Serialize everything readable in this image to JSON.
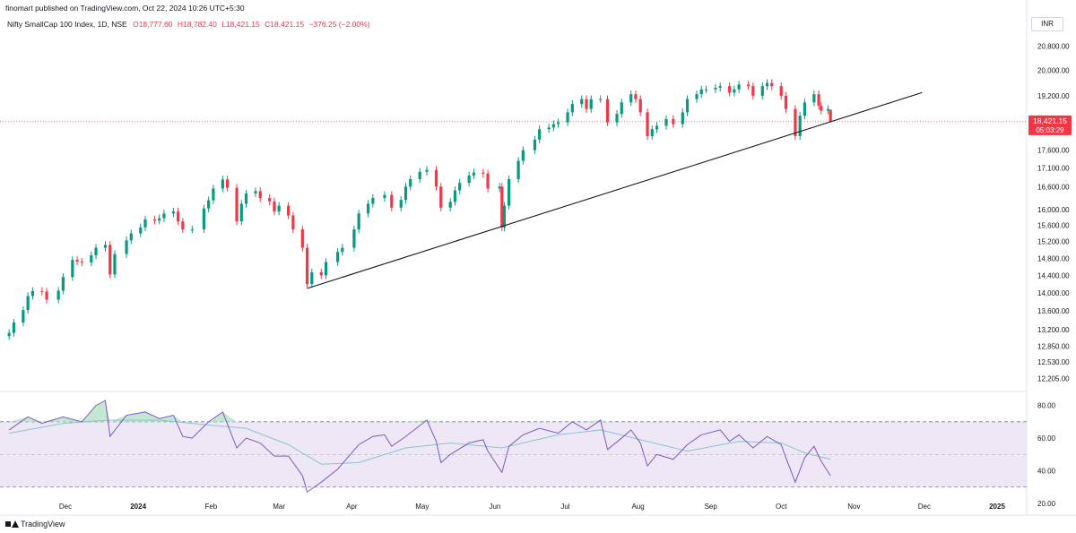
{
  "header": {
    "published_by": "finomart published on TradingView.com, Oct 22, 2024 10:26 UTC+5:30"
  },
  "legend": {
    "symbol": "Nifty SmallCap 100 Index, 1D, NSE",
    "open": "O18,777.60",
    "high": "H18,782.40",
    "low": "L18,421.15",
    "close": "C18,421.15",
    "change": "−376.25 (−2.00%)"
  },
  "currency": "INR",
  "last_price": {
    "value": "18,421.15",
    "countdown": "05:03:29",
    "level": 18421.15
  },
  "footer": {
    "logo_text": "TradingView"
  },
  "colors": {
    "up": "#089981",
    "down": "#f23645",
    "rsi": "#7e57c2",
    "rsi_ma": "#89c4d0",
    "rsi_band": "#ede7f6",
    "trendline": "#131722"
  },
  "chart_data": [
    {
      "type": "candlestick",
      "scale": "log",
      "ylim": [
        12040,
        21200
      ],
      "y_ticks": [
        {
          "value": 12205,
          "label": "12,205.00"
        },
        {
          "value": 12530,
          "label": "12,530.00"
        },
        {
          "value": 12850,
          "label": "12,850.00"
        },
        {
          "value": 13200,
          "label": "13,200.00"
        },
        {
          "value": 13600,
          "label": "13,600.00"
        },
        {
          "value": 14000,
          "label": "14,000.00"
        },
        {
          "value": 14400,
          "label": "14,400.00"
        },
        {
          "value": 14800,
          "label": "14,800.00"
        },
        {
          "value": 15200,
          "label": "15,200.00"
        },
        {
          "value": 15600,
          "label": "15,600.00"
        },
        {
          "value": 16000,
          "label": "16,000.00"
        },
        {
          "value": 16600,
          "label": "16,600.00"
        },
        {
          "value": 17100,
          "label": "17,100.00"
        },
        {
          "value": 17600,
          "label": "17,600.00"
        },
        {
          "value": 19200,
          "label": "19,200.00"
        },
        {
          "value": 20000,
          "label": "20,000.00"
        },
        {
          "value": 20800,
          "label": "20,800.00"
        }
      ],
      "x_labels": [
        "Dec",
        "2024",
        "Feb",
        "Mar",
        "Apr",
        "May",
        "Jun",
        "Jul",
        "Aug",
        "Sep",
        "Oct",
        "Nov",
        "Dec",
        "2025"
      ],
      "x_label_dates": [
        "2023-12-01",
        "2024-01-01",
        "2024-02-01",
        "2024-03-01",
        "2024-04-01",
        "2024-05-01",
        "2024-06-01",
        "2024-07-01",
        "2024-08-01",
        "2024-09-01",
        "2024-10-01",
        "2024-11-01",
        "2024-12-01",
        "2025-01-01"
      ],
      "trendline": [
        {
          "date": "2024-03-13",
          "value": 14100
        },
        {
          "date": "2024-11-30",
          "value": 19300
        }
      ],
      "series": [
        {
          "date": "2023-11-07",
          "close": 13130
        },
        {
          "date": "2023-11-09",
          "close": 13350
        },
        {
          "date": "2023-11-13",
          "close": 13620
        },
        {
          "date": "2023-11-15",
          "close": 13930
        },
        {
          "date": "2023-11-17",
          "close": 14040
        },
        {
          "date": "2023-11-21",
          "close": 14030
        },
        {
          "date": "2023-11-23",
          "close": 13850
        },
        {
          "date": "2023-11-28",
          "close": 14050
        },
        {
          "date": "2023-11-30",
          "close": 14360
        },
        {
          "date": "2023-12-04",
          "close": 14760
        },
        {
          "date": "2023-12-06",
          "close": 14720
        },
        {
          "date": "2023-12-08",
          "close": 14700
        },
        {
          "date": "2023-12-12",
          "close": 14870
        },
        {
          "date": "2023-12-14",
          "close": 15050
        },
        {
          "date": "2023-12-18",
          "close": 15120
        },
        {
          "date": "2023-12-20",
          "close": 14420
        },
        {
          "date": "2023-12-22",
          "close": 14900
        },
        {
          "date": "2023-12-27",
          "close": 15230
        },
        {
          "date": "2023-12-29",
          "close": 15400
        },
        {
          "date": "2024-01-02",
          "close": 15550
        },
        {
          "date": "2024-01-04",
          "close": 15750
        },
        {
          "date": "2024-01-08",
          "close": 15720
        },
        {
          "date": "2024-01-10",
          "close": 15780
        },
        {
          "date": "2024-01-12",
          "close": 15900
        },
        {
          "date": "2024-01-16",
          "close": 15950
        },
        {
          "date": "2024-01-18",
          "close": 15700
        },
        {
          "date": "2024-01-20",
          "close": 15500
        },
        {
          "date": "2024-01-24",
          "close": 15500
        },
        {
          "date": "2024-01-29",
          "close": 16030
        },
        {
          "date": "2024-01-31",
          "close": 16240
        },
        {
          "date": "2024-02-02",
          "close": 16550
        },
        {
          "date": "2024-02-06",
          "close": 16790
        },
        {
          "date": "2024-02-08",
          "close": 16570
        },
        {
          "date": "2024-02-12",
          "close": 15700
        },
        {
          "date": "2024-02-14",
          "close": 16150
        },
        {
          "date": "2024-02-16",
          "close": 16420
        },
        {
          "date": "2024-02-20",
          "close": 16480
        },
        {
          "date": "2024-02-22",
          "close": 16300
        },
        {
          "date": "2024-02-26",
          "close": 16210
        },
        {
          "date": "2024-02-28",
          "close": 15950
        },
        {
          "date": "2024-03-01",
          "close": 16100
        },
        {
          "date": "2024-03-05",
          "close": 15850
        },
        {
          "date": "2024-03-07",
          "close": 15500
        },
        {
          "date": "2024-03-11",
          "close": 15050
        },
        {
          "date": "2024-03-13",
          "close": 14200
        },
        {
          "date": "2024-03-15",
          "close": 14470
        },
        {
          "date": "2024-03-19",
          "close": 14400
        },
        {
          "date": "2024-03-21",
          "close": 14710
        },
        {
          "date": "2024-03-26",
          "close": 14950
        },
        {
          "date": "2024-03-28",
          "close": 15050
        },
        {
          "date": "2024-04-02",
          "close": 15500
        },
        {
          "date": "2024-04-04",
          "close": 15900
        },
        {
          "date": "2024-04-08",
          "close": 16150
        },
        {
          "date": "2024-04-10",
          "close": 16300
        },
        {
          "date": "2024-04-15",
          "close": 16380
        },
        {
          "date": "2024-04-18",
          "close": 16050
        },
        {
          "date": "2024-04-22",
          "close": 16250
        },
        {
          "date": "2024-04-24",
          "close": 16600
        },
        {
          "date": "2024-04-26",
          "close": 16800
        },
        {
          "date": "2024-04-30",
          "close": 17000
        },
        {
          "date": "2024-05-03",
          "close": 17050
        },
        {
          "date": "2024-05-07",
          "close": 16600
        },
        {
          "date": "2024-05-09",
          "close": 16050
        },
        {
          "date": "2024-05-13",
          "close": 16200
        },
        {
          "date": "2024-05-15",
          "close": 16500
        },
        {
          "date": "2024-05-17",
          "close": 16700
        },
        {
          "date": "2024-05-21",
          "close": 16900
        },
        {
          "date": "2024-05-23",
          "close": 16980
        },
        {
          "date": "2024-05-27",
          "close": 16950
        },
        {
          "date": "2024-05-29",
          "close": 16550
        },
        {
          "date": "2024-06-03",
          "close": 16600
        },
        {
          "date": "2024-06-04",
          "close": 15550
        },
        {
          "date": "2024-06-05",
          "close": 16100
        },
        {
          "date": "2024-06-07",
          "close": 16800
        },
        {
          "date": "2024-06-11",
          "close": 17300
        },
        {
          "date": "2024-06-13",
          "close": 17600
        },
        {
          "date": "2024-06-18",
          "close": 17900
        },
        {
          "date": "2024-06-20",
          "close": 18200
        },
        {
          "date": "2024-06-24",
          "close": 18250
        },
        {
          "date": "2024-06-26",
          "close": 18350
        },
        {
          "date": "2024-06-28",
          "close": 18400
        },
        {
          "date": "2024-07-02",
          "close": 18700
        },
        {
          "date": "2024-07-04",
          "close": 18950
        },
        {
          "date": "2024-07-08",
          "close": 19100
        },
        {
          "date": "2024-07-10",
          "close": 18800
        },
        {
          "date": "2024-07-12",
          "close": 19100
        },
        {
          "date": "2024-07-16",
          "close": 19100
        },
        {
          "date": "2024-07-19",
          "close": 18400
        },
        {
          "date": "2024-07-23",
          "close": 18650
        },
        {
          "date": "2024-07-25",
          "close": 19000
        },
        {
          "date": "2024-07-29",
          "close": 19250
        },
        {
          "date": "2024-07-31",
          "close": 19100
        },
        {
          "date": "2024-08-02",
          "close": 18700
        },
        {
          "date": "2024-08-05",
          "close": 18000
        },
        {
          "date": "2024-08-07",
          "close": 18200
        },
        {
          "date": "2024-08-09",
          "close": 18300
        },
        {
          "date": "2024-08-13",
          "close": 18500
        },
        {
          "date": "2024-08-16",
          "close": 18350
        },
        {
          "date": "2024-08-20",
          "close": 18700
        },
        {
          "date": "2024-08-22",
          "close": 19100
        },
        {
          "date": "2024-08-26",
          "close": 19250
        },
        {
          "date": "2024-08-28",
          "close": 19400
        },
        {
          "date": "2024-08-30",
          "close": 19400
        },
        {
          "date": "2024-09-03",
          "close": 19450
        },
        {
          "date": "2024-09-05",
          "close": 19500
        },
        {
          "date": "2024-09-09",
          "close": 19300
        },
        {
          "date": "2024-09-11",
          "close": 19400
        },
        {
          "date": "2024-09-13",
          "close": 19550
        },
        {
          "date": "2024-09-17",
          "close": 19500
        },
        {
          "date": "2024-09-19",
          "close": 19200
        },
        {
          "date": "2024-09-23",
          "close": 19500
        },
        {
          "date": "2024-09-25",
          "close": 19600
        },
        {
          "date": "2024-09-27",
          "close": 19500
        },
        {
          "date": "2024-10-01",
          "close": 19200
        },
        {
          "date": "2024-10-03",
          "close": 18800
        },
        {
          "date": "2024-10-07",
          "close": 18000
        },
        {
          "date": "2024-10-09",
          "close": 18600
        },
        {
          "date": "2024-10-11",
          "close": 19000
        },
        {
          "date": "2024-10-15",
          "close": 19250
        },
        {
          "date": "2024-10-17",
          "close": 18900
        },
        {
          "date": "2024-10-18",
          "close": 18750
        },
        {
          "date": "2024-10-21",
          "close": 18797.4
        },
        {
          "date": "2024-10-22",
          "open": 18777.6,
          "high": 18782.4,
          "low": 18421.15,
          "close": 18421.15
        }
      ]
    },
    {
      "type": "line",
      "name": "RSI",
      "ylim": [
        20,
        88
      ],
      "y_ticks": [
        {
          "value": 20,
          "label": "20.00"
        },
        {
          "value": 40,
          "label": "40.00"
        },
        {
          "value": 60,
          "label": "60.00"
        },
        {
          "value": 80,
          "label": "80.00"
        }
      ],
      "band": [
        30,
        70
      ],
      "midline": 50,
      "rsi_series": [
        {
          "date": "2023-11-07",
          "value": 65
        },
        {
          "date": "2023-11-15",
          "value": 73
        },
        {
          "date": "2023-11-21",
          "value": 69
        },
        {
          "date": "2023-11-30",
          "value": 73
        },
        {
          "date": "2023-12-08",
          "value": 70
        },
        {
          "date": "2023-12-14",
          "value": 80
        },
        {
          "date": "2023-12-18",
          "value": 83
        },
        {
          "date": "2023-12-20",
          "value": 61
        },
        {
          "date": "2023-12-27",
          "value": 74
        },
        {
          "date": "2024-01-04",
          "value": 76
        },
        {
          "date": "2024-01-10",
          "value": 72
        },
        {
          "date": "2024-01-16",
          "value": 74
        },
        {
          "date": "2024-01-20",
          "value": 61
        },
        {
          "date": "2024-01-24",
          "value": 60
        },
        {
          "date": "2024-01-31",
          "value": 70
        },
        {
          "date": "2024-02-06",
          "value": 76
        },
        {
          "date": "2024-02-12",
          "value": 54
        },
        {
          "date": "2024-02-16",
          "value": 60
        },
        {
          "date": "2024-02-22",
          "value": 57
        },
        {
          "date": "2024-02-28",
          "value": 49
        },
        {
          "date": "2024-03-05",
          "value": 49
        },
        {
          "date": "2024-03-11",
          "value": 37
        },
        {
          "date": "2024-03-13",
          "value": 27
        },
        {
          "date": "2024-03-19",
          "value": 33
        },
        {
          "date": "2024-03-26",
          "value": 41
        },
        {
          "date": "2024-04-04",
          "value": 56
        },
        {
          "date": "2024-04-10",
          "value": 61
        },
        {
          "date": "2024-04-15",
          "value": 62
        },
        {
          "date": "2024-04-18",
          "value": 55
        },
        {
          "date": "2024-04-24",
          "value": 61
        },
        {
          "date": "2024-05-03",
          "value": 71
        },
        {
          "date": "2024-05-07",
          "value": 58
        },
        {
          "date": "2024-05-09",
          "value": 45
        },
        {
          "date": "2024-05-13",
          "value": 50
        },
        {
          "date": "2024-05-21",
          "value": 57
        },
        {
          "date": "2024-05-27",
          "value": 59
        },
        {
          "date": "2024-05-29",
          "value": 52
        },
        {
          "date": "2024-06-04",
          "value": 39
        },
        {
          "date": "2024-06-07",
          "value": 55
        },
        {
          "date": "2024-06-13",
          "value": 62
        },
        {
          "date": "2024-06-20",
          "value": 66
        },
        {
          "date": "2024-06-28",
          "value": 63
        },
        {
          "date": "2024-07-04",
          "value": 70
        },
        {
          "date": "2024-07-10",
          "value": 65
        },
        {
          "date": "2024-07-16",
          "value": 71
        },
        {
          "date": "2024-07-19",
          "value": 53
        },
        {
          "date": "2024-07-25",
          "value": 60
        },
        {
          "date": "2024-07-29",
          "value": 65
        },
        {
          "date": "2024-08-02",
          "value": 57
        },
        {
          "date": "2024-08-05",
          "value": 43
        },
        {
          "date": "2024-08-09",
          "value": 50
        },
        {
          "date": "2024-08-16",
          "value": 47
        },
        {
          "date": "2024-08-22",
          "value": 56
        },
        {
          "date": "2024-08-28",
          "value": 62
        },
        {
          "date": "2024-09-05",
          "value": 65
        },
        {
          "date": "2024-09-09",
          "value": 58
        },
        {
          "date": "2024-09-13",
          "value": 62
        },
        {
          "date": "2024-09-19",
          "value": 54
        },
        {
          "date": "2024-09-25",
          "value": 61
        },
        {
          "date": "2024-10-01",
          "value": 56
        },
        {
          "date": "2024-10-03",
          "value": 48
        },
        {
          "date": "2024-10-07",
          "value": 33
        },
        {
          "date": "2024-10-11",
          "value": 48
        },
        {
          "date": "2024-10-15",
          "value": 55
        },
        {
          "date": "2024-10-18",
          "value": 46
        },
        {
          "date": "2024-10-22",
          "value": 37
        }
      ],
      "ma_series": [
        {
          "date": "2023-11-07",
          "value": 63
        },
        {
          "date": "2023-11-30",
          "value": 69
        },
        {
          "date": "2023-12-20",
          "value": 71
        },
        {
          "date": "2024-01-10",
          "value": 71
        },
        {
          "date": "2024-01-31",
          "value": 68
        },
        {
          "date": "2024-02-16",
          "value": 66
        },
        {
          "date": "2024-03-05",
          "value": 56
        },
        {
          "date": "2024-03-19",
          "value": 44
        },
        {
          "date": "2024-04-04",
          "value": 45
        },
        {
          "date": "2024-04-24",
          "value": 54
        },
        {
          "date": "2024-05-13",
          "value": 57
        },
        {
          "date": "2024-06-04",
          "value": 54
        },
        {
          "date": "2024-06-28",
          "value": 62
        },
        {
          "date": "2024-07-16",
          "value": 65
        },
        {
          "date": "2024-08-05",
          "value": 58
        },
        {
          "date": "2024-08-22",
          "value": 52
        },
        {
          "date": "2024-09-13",
          "value": 58
        },
        {
          "date": "2024-10-01",
          "value": 57
        },
        {
          "date": "2024-10-11",
          "value": 51
        },
        {
          "date": "2024-10-22",
          "value": 47
        }
      ]
    }
  ]
}
